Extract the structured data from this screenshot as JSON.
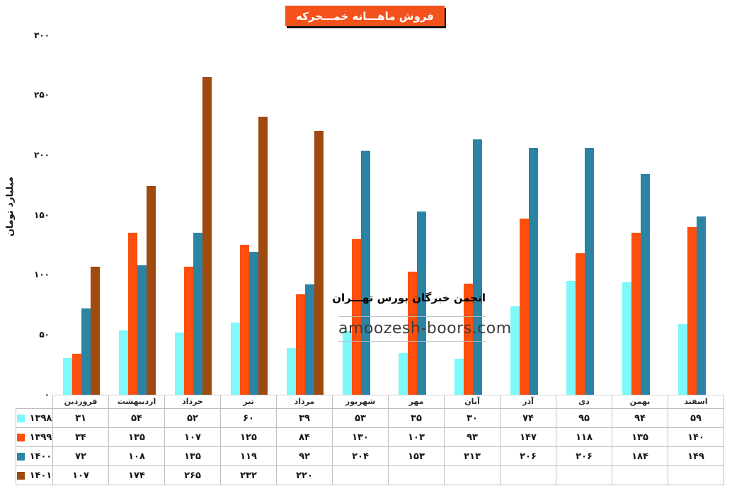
{
  "persian_digits": "۰۱۲۳۴۵۶۷۸۹",
  "title": "فروش ماهـــانه خمـــحرکه",
  "y_axis_title": "میلیارد تومان",
  "watermark": {
    "line1": "انجمن خبرگان بورس تهـــران",
    "line2": "amoozesh-boors.com"
  },
  "colors": {
    "title_badge_background": "#F4521C",
    "title_badge_shadow": "#141414",
    "axis_line": "#D4D4D4",
    "table_border": "#BFBFBF",
    "series_1398": "#7EF8FA",
    "series_1399": "#FD4F0E",
    "series_1400": "#2B84A3",
    "series_1401": "#9F4A10"
  },
  "chart_data": {
    "type": "bar",
    "title": "فروش ماهـــانه خمـــحرکه",
    "xlabel": "",
    "ylabel": "میلیارد تومان",
    "ylim": [
      0,
      300
    ],
    "y_ticks": [
      0,
      50,
      100,
      150,
      200,
      250,
      300
    ],
    "grid": false,
    "legend_position": "table-left-column",
    "categories": [
      "فروردین",
      "اردیبهشت",
      "خرداد",
      "تیر",
      "مرداد",
      "شهریور",
      "مهر",
      "آبان",
      "آذر",
      "دی",
      "بهمن",
      "اسفند"
    ],
    "series": [
      {
        "name": "1398",
        "color": "#7EF8FA",
        "values": [
          31,
          54,
          52,
          60,
          39,
          53,
          35,
          30,
          74,
          95,
          94,
          59
        ]
      },
      {
        "name": "1399",
        "color": "#FD4F0E",
        "values": [
          34,
          135,
          107,
          125,
          84,
          130,
          103,
          93,
          147,
          118,
          135,
          140
        ]
      },
      {
        "name": "1400",
        "color": "#2B84A3",
        "values": [
          72,
          108,
          135,
          119,
          92,
          204,
          153,
          213,
          206,
          206,
          184,
          149
        ]
      },
      {
        "name": "1401",
        "color": "#9F4A10",
        "values": [
          107,
          174,
          265,
          232,
          220,
          null,
          null,
          null,
          null,
          null,
          null,
          null
        ]
      }
    ]
  }
}
